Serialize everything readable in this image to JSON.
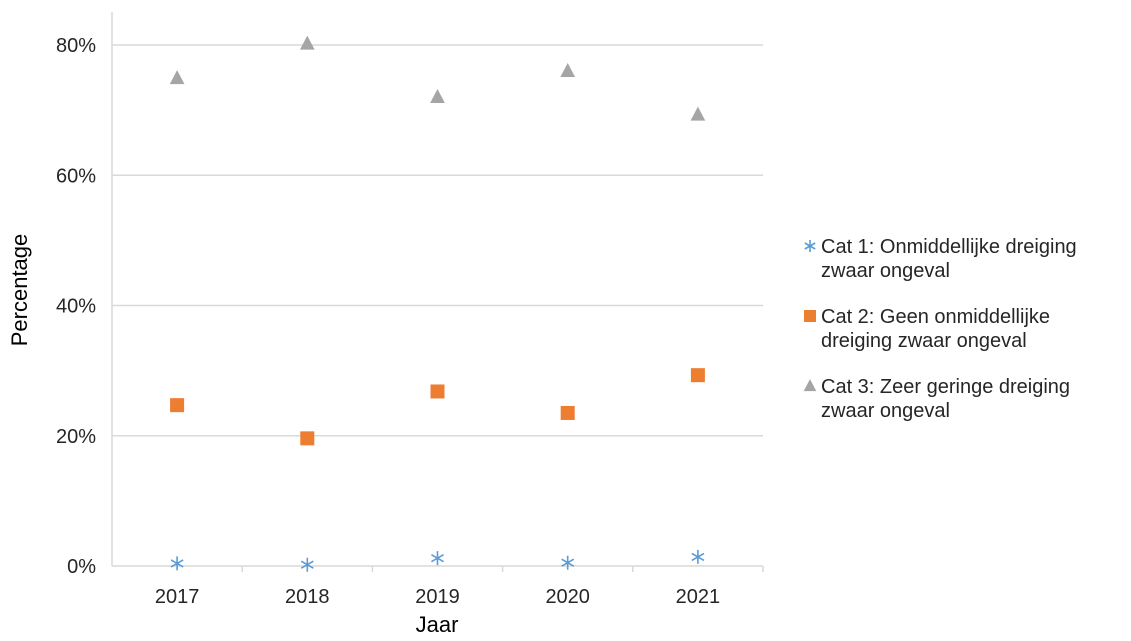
{
  "chart_data": {
    "type": "scatter",
    "title": "",
    "xlabel": "Jaar",
    "ylabel": "Percentage",
    "categories": [
      "2017",
      "2018",
      "2019",
      "2020",
      "2021"
    ],
    "ylim": [
      0,
      0.8
    ],
    "yticks": [
      "0%",
      "20%",
      "40%",
      "60%",
      "80%"
    ],
    "grid": "horizontal",
    "legend_position": "right",
    "series": [
      {
        "name": "Cat 1: Onmiddellijke dreiging zwaar ongeval",
        "legend_lines": [
          "Cat 1: Onmiddellijke dreiging",
          "zwaar ongeval"
        ],
        "marker": "asterisk-icon",
        "color": "#5B9BD5",
        "values": [
          0.004,
          0.002,
          0.012,
          0.005,
          0.014
        ]
      },
      {
        "name": "Cat 2: Geen onmiddellijke dreiging zwaar ongeval",
        "legend_lines": [
          "Cat 2: Geen onmiddellijke",
          "dreiging zwaar ongeval"
        ],
        "marker": "square-icon",
        "color": "#ED7D31",
        "values": [
          0.247,
          0.196,
          0.268,
          0.235,
          0.293
        ]
      },
      {
        "name": "Cat 3: Zeer geringe dreiging zwaar ongeval",
        "legend_lines": [
          "Cat 3: Zeer geringe dreiging",
          "zwaar ongeval"
        ],
        "marker": "triangle-icon",
        "color": "#A5A5A5",
        "values": [
          0.749,
          0.802,
          0.72,
          0.76,
          0.693
        ]
      }
    ]
  }
}
